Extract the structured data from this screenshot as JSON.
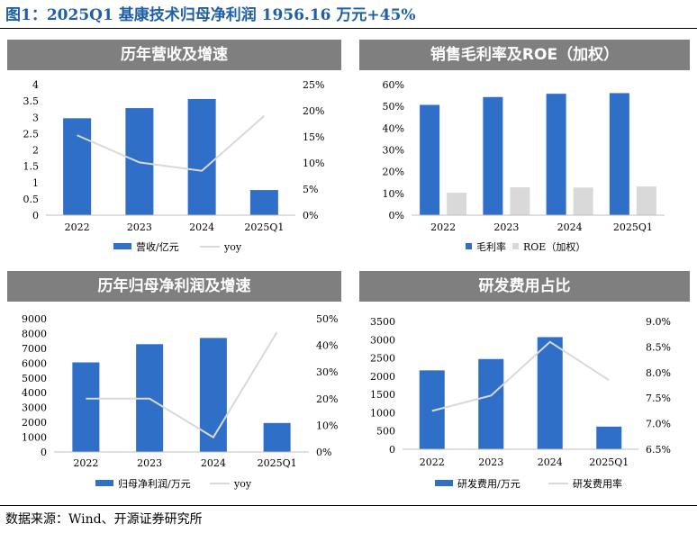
{
  "figure_title": "图1：2025Q1 基康技术归母净利润 1956.16 万元+45%",
  "source": "数据来源：Wind、开源证券研究所",
  "colors": {
    "bar": "#2f6fc7",
    "gray_bar": "#d9d9d9",
    "line": "#d9d9d9",
    "header": "#7f7f7f",
    "title": "#1f5fa8"
  },
  "chart_data": [
    {
      "type": "bar",
      "title": "历年营收及增速",
      "categories": [
        "2022",
        "2023",
        "2024",
        "2025Q1"
      ],
      "series": [
        {
          "name": "营收/亿元",
          "kind": "bar",
          "axis": "left",
          "values": [
            2.97,
            3.28,
            3.56,
            0.77
          ]
        },
        {
          "name": "yoy",
          "kind": "line",
          "axis": "right",
          "values": [
            0.153,
            0.101,
            0.085,
            0.19
          ]
        }
      ],
      "left_axis": {
        "min": 0,
        "max": 4,
        "ticks": [
          "0",
          "0.5",
          "1",
          "1.5",
          "2",
          "2.5",
          "3",
          "3.5",
          "4"
        ]
      },
      "right_axis": {
        "min": 0,
        "max": 0.25,
        "ticks": [
          "0%",
          "5%",
          "10%",
          "15%",
          "20%",
          "25%"
        ]
      },
      "legend": "bottom"
    },
    {
      "type": "bar",
      "title": "销售毛利率及ROE（加权）",
      "categories": [
        "2022",
        "2023",
        "2024",
        "2025Q1"
      ],
      "series": [
        {
          "name": "毛利率",
          "kind": "bar",
          "axis": "left",
          "values": [
            0.507,
            0.543,
            0.558,
            0.561
          ]
        },
        {
          "name": "ROE（加权）",
          "kind": "bar-gray",
          "axis": "left",
          "values": [
            0.103,
            0.128,
            0.127,
            0.132
          ]
        }
      ],
      "left_axis": {
        "min": 0,
        "max": 0.6,
        "ticks": [
          "0%",
          "10%",
          "20%",
          "30%",
          "40%",
          "50%",
          "60%"
        ]
      },
      "legend": "bottom"
    },
    {
      "type": "bar",
      "title": "历年归母净利润及增速",
      "categories": [
        "2022",
        "2023",
        "2024",
        "2025Q1"
      ],
      "series": [
        {
          "name": "归母净利润/万元",
          "kind": "bar",
          "axis": "left",
          "values": [
            6050,
            7280,
            7700,
            1956.16
          ]
        },
        {
          "name": "yoy",
          "kind": "line",
          "axis": "right",
          "values": [
            0.2,
            0.2,
            0.055,
            0.45
          ]
        }
      ],
      "left_axis": {
        "min": 0,
        "max": 9000,
        "ticks": [
          "0",
          "1000",
          "2000",
          "3000",
          "4000",
          "5000",
          "6000",
          "7000",
          "8000",
          "9000"
        ]
      },
      "right_axis": {
        "min": 0,
        "max": 0.5,
        "ticks": [
          "0%",
          "10%",
          "20%",
          "30%",
          "40%",
          "50%"
        ]
      },
      "legend": "bottom"
    },
    {
      "type": "bar",
      "title": "研发费用占比",
      "categories": [
        "2022",
        "2023",
        "2024",
        "2025Q1"
      ],
      "series": [
        {
          "name": "研发费用/万元",
          "kind": "bar",
          "axis": "left",
          "values": [
            2160,
            2470,
            3070,
            620
          ]
        },
        {
          "name": "研发费用率",
          "kind": "line",
          "axis": "right",
          "values": [
            0.0725,
            0.0755,
            0.086,
            0.0785
          ]
        }
      ],
      "left_axis": {
        "min": 0,
        "max": 3500,
        "ticks": [
          "0",
          "500",
          "1000",
          "1500",
          "2000",
          "2500",
          "3000",
          "3500"
        ]
      },
      "right_axis": {
        "min": 0.065,
        "max": 0.09,
        "ticks": [
          "6.5%",
          "7.0%",
          "7.5%",
          "8.0%",
          "8.5%",
          "9.0%"
        ]
      },
      "legend": "bottom"
    }
  ]
}
